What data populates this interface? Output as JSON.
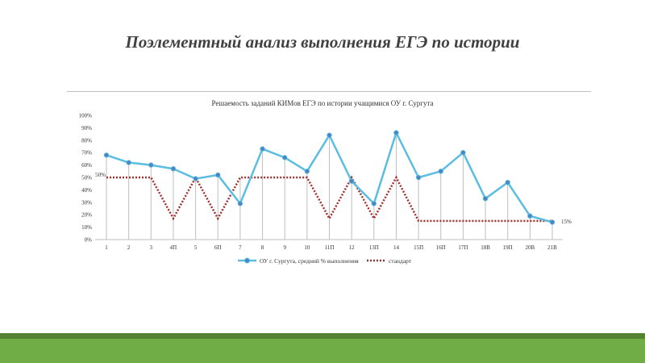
{
  "slide": {
    "title": "Поэлементный анализ выполнения ЕГЭ по истории"
  },
  "colors": {
    "series_primary": "#5bbde0",
    "series_marker": "#4a86c5",
    "series_standard": "#a0302c",
    "band_dark": "#548235",
    "band_light": "#70ad47"
  },
  "chart_data": {
    "type": "line",
    "title": "Решаемость заданий КИМов ЕГЭ по истории учащимися ОУ г. Сургута",
    "categories": [
      "1",
      "2",
      "3",
      "4П",
      "5",
      "6П",
      "7",
      "8",
      "9",
      "10",
      "11П",
      "12",
      "13П",
      "14",
      "15П",
      "16П",
      "17П",
      "18В",
      "19П",
      "20В",
      "21В"
    ],
    "ylim": [
      0,
      100
    ],
    "yticks": [
      "0%",
      "10%",
      "20%",
      "30%",
      "40%",
      "50%",
      "60%",
      "70%",
      "80%",
      "90%",
      "100%"
    ],
    "grid": false,
    "drop_lines": true,
    "legend_position": "bottom",
    "series": [
      {
        "name": "ОУ г. Сургута, средний % выполнения",
        "style": "solid-with-markers",
        "values": [
          68,
          62,
          60,
          57,
          49,
          52,
          29,
          73,
          66,
          55,
          84,
          47,
          29,
          86,
          50,
          55,
          70,
          33,
          46,
          19,
          14
        ]
      },
      {
        "name": "стандарт",
        "style": "dotted",
        "values": [
          50,
          50,
          50,
          17,
          50,
          17,
          50,
          50,
          50,
          50,
          17,
          50,
          17,
          50,
          15,
          15,
          15,
          15,
          15,
          15,
          15
        ]
      }
    ],
    "annotations": [
      {
        "text": "50%",
        "series": 1,
        "index": 0,
        "side": "left"
      },
      {
        "text": "15%",
        "series": 1,
        "index": 20,
        "side": "right"
      }
    ]
  }
}
